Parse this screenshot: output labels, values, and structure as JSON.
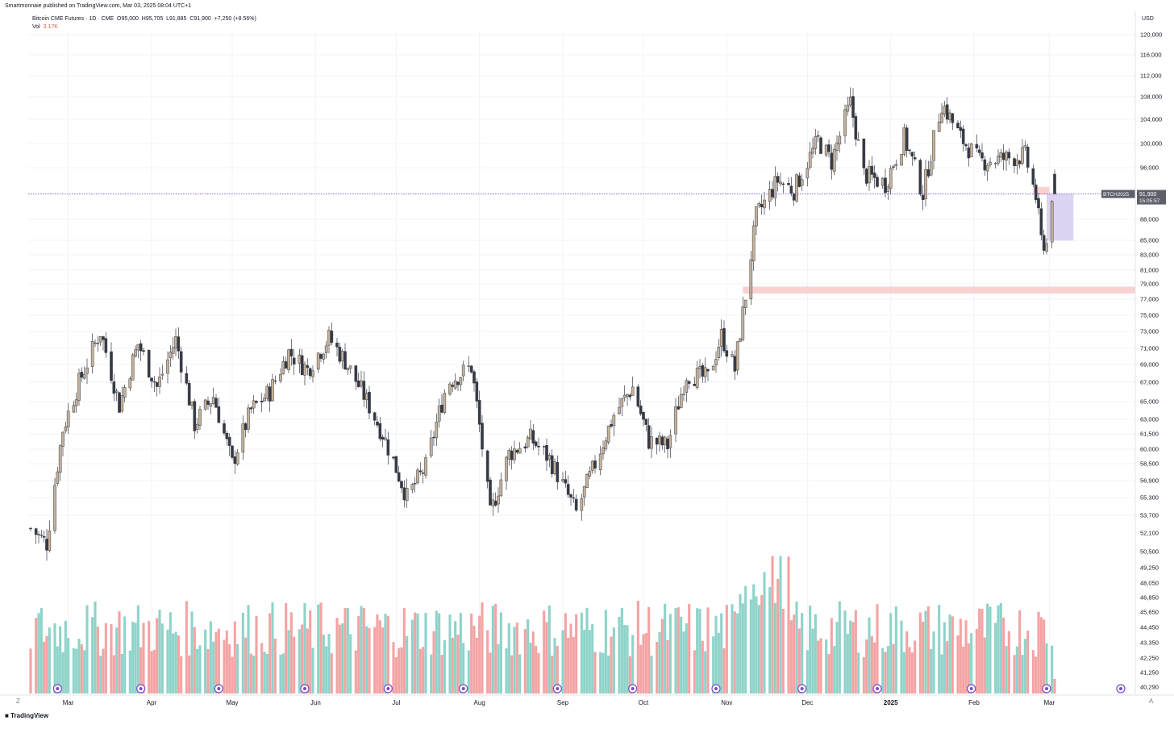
{
  "header": {
    "published": "Smartmonnaie published on TradingView.com, Mar 03, 2025 08:04 UTC+1",
    "symbol_title": "Bitcoin CME Futures · 1D · CME",
    "ohlc": {
      "open": "O95,000",
      "high": "H95,705",
      "low": "L91,885",
      "close": "C91,900",
      "change": "+7,250 (+8.56%)"
    },
    "vol_label": "Vol",
    "vol_value": "3.17K"
  },
  "footer": {
    "logo_text": "TradingView",
    "left_btn": "Z",
    "right_btn": "A",
    "currency": "USD"
  },
  "colors": {
    "up": "#c7b299",
    "down": "#363a45",
    "vol_up": "#8ed3c9",
    "vol_down": "#f4a3a3",
    "price_line": "#7b4cc4",
    "zone_pink": "#f9c9c9",
    "zone_purple": "#d7cdf2",
    "grid": "#f0f3fa"
  },
  "chart_data": {
    "type": "candlestick",
    "title": "Bitcoin CME Futures · 1D · CME",
    "y_axis": {
      "scale": "log",
      "label": "USD",
      "ticks": [
        "120,000",
        "116,000",
        "112,000",
        "108,000",
        "104,000",
        "100,000",
        "96,000",
        "88,000",
        "85,000",
        "83,000",
        "81,000",
        "79,000",
        "77,000",
        "75,000",
        "73,000",
        "71,000",
        "69,000",
        "67,000",
        "65,000",
        "63,000",
        "61,500",
        "60,000",
        "58,500",
        "56,900",
        "55,300",
        "53,700",
        "52,100",
        "50,500",
        "49,250",
        "48,050",
        "46,850",
        "45,650",
        "44,450",
        "43,350",
        "42,250",
        "41,250",
        "40,290"
      ]
    },
    "x_axis": {
      "labels": [
        "Mar",
        "Apr",
        "May",
        "Jun",
        "Jul",
        "Aug",
        "Sep",
        "Oct",
        "Nov",
        "Dec",
        "2025",
        "Feb",
        "Mar"
      ]
    },
    "current_price": {
      "symbol": "BTCH2025",
      "price": "91,900",
      "countdown": "15:05:57",
      "value": 91900
    },
    "zones": [
      {
        "name": "pink-support-zone",
        "low": 77800,
        "high": 78700,
        "from": "2024-11-07"
      },
      {
        "name": "pink-small-zone",
        "low": 91800,
        "high": 93000,
        "from": "2025-02-23",
        "to": "2025-03-01"
      },
      {
        "name": "purple-gap-zone",
        "low": 85000,
        "high": 91900,
        "from": "2025-02-28",
        "to": "2025-03-10"
      }
    ],
    "start_date": "2024-02-16",
    "end_date": "2025-03-03",
    "anchors": [
      [
        "2024-02-16",
        52500,
        1
      ],
      [
        "2024-02-22",
        51200,
        1
      ],
      [
        "2024-02-28",
        62000,
        1
      ],
      [
        "2024-03-05",
        67000,
        1
      ],
      [
        "2024-03-13",
        73000,
        1
      ],
      [
        "2024-03-20",
        64500,
        1
      ],
      [
        "2024-03-27",
        71500,
        1
      ],
      [
        "2024-04-03",
        66500,
        1
      ],
      [
        "2024-04-10",
        72000,
        1
      ],
      [
        "2024-04-17",
        62500,
        1
      ],
      [
        "2024-04-24",
        65500,
        1
      ],
      [
        "2024-05-01",
        58500,
        1
      ],
      [
        "2024-05-08",
        64000,
        1
      ],
      [
        "2024-05-15",
        66000,
        1
      ],
      [
        "2024-05-22",
        70500,
        1
      ],
      [
        "2024-05-29",
        68500,
        1
      ],
      [
        "2024-06-06",
        72200,
        1
      ],
      [
        "2024-06-12",
        69500,
        1
      ],
      [
        "2024-06-19",
        65600,
        1
      ],
      [
        "2024-06-26",
        61500,
        1
      ],
      [
        "2024-07-05",
        55300,
        1
      ],
      [
        "2024-07-12",
        58200,
        1
      ],
      [
        "2024-07-20",
        67000,
        1
      ],
      [
        "2024-07-29",
        68800,
        1
      ],
      [
        "2024-08-05",
        53700,
        1
      ],
      [
        "2024-08-12",
        59500,
        1
      ],
      [
        "2024-08-20",
        61000,
        1
      ],
      [
        "2024-08-27",
        59000,
        1
      ],
      [
        "2024-09-06",
        53900,
        1
      ],
      [
        "2024-09-13",
        58500,
        1
      ],
      [
        "2024-09-20",
        63500,
        1
      ],
      [
        "2024-09-27",
        66500,
        1
      ],
      [
        "2024-10-03",
        60800,
        1
      ],
      [
        "2024-10-10",
        60300,
        1
      ],
      [
        "2024-10-17",
        68000,
        1
      ],
      [
        "2024-10-25",
        67500,
        1
      ],
      [
        "2024-10-30",
        72500,
        1
      ],
      [
        "2024-11-04",
        68500,
        1
      ],
      [
        "2024-11-08",
        77500,
        1
      ],
      [
        "2024-11-12",
        88500,
        1
      ],
      [
        "2024-11-20",
        94000,
        1
      ],
      [
        "2024-11-26",
        92500,
        1
      ],
      [
        "2024-12-05",
        100500,
        1
      ],
      [
        "2024-12-10",
        97000,
        1
      ],
      [
        "2024-12-17",
        107000,
        1
      ],
      [
        "2024-12-22",
        95000,
        1
      ],
      [
        "2024-12-30",
        93500,
        1
      ],
      [
        "2025-01-06",
        101000,
        1
      ],
      [
        "2025-01-13",
        92000,
        1
      ],
      [
        "2025-01-20",
        107000,
        1
      ],
      [
        "2025-01-27",
        101000,
        1
      ],
      [
        "2025-02-03",
        97000,
        1
      ],
      [
        "2025-02-12",
        97500,
        1
      ],
      [
        "2025-02-20",
        98000,
        1
      ],
      [
        "2025-02-24",
        91500,
        1
      ],
      [
        "2025-02-26",
        85000,
        1
      ],
      [
        "2025-02-28",
        84500,
        1
      ],
      [
        "2025-03-02",
        91900,
        1
      ]
    ]
  }
}
